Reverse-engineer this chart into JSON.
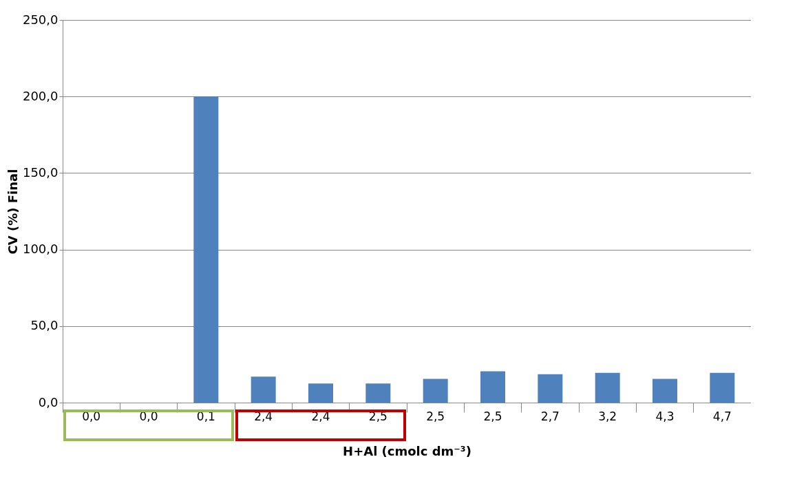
{
  "chart_data": {
    "type": "bar",
    "xlabel": "H+Al (cmolc dm⁻³)",
    "ylabel": "CV (%) Final",
    "categories": [
      "0,0",
      "0,0",
      "0,1",
      "2,4",
      "2,4",
      "2,5",
      "2,5",
      "2,5",
      "2,7",
      "3,2",
      "4,3",
      "4,7"
    ],
    "values": [
      0,
      0,
      200,
      17,
      12.5,
      12.5,
      15.5,
      20.5,
      18.5,
      19.5,
      15.5,
      19.5
    ],
    "color": "#4f81bd",
    "ylim": [
      0,
      250
    ],
    "yticks": [
      {
        "value": 0,
        "label": "0,0"
      },
      {
        "value": 50,
        "label": "50,0"
      },
      {
        "value": 100,
        "label": "100,0"
      },
      {
        "value": 150,
        "label": "150,0"
      },
      {
        "value": 200,
        "label": "200,0"
      },
      {
        "value": 250,
        "label": "250,0"
      }
    ],
    "grid": "y"
  }
}
